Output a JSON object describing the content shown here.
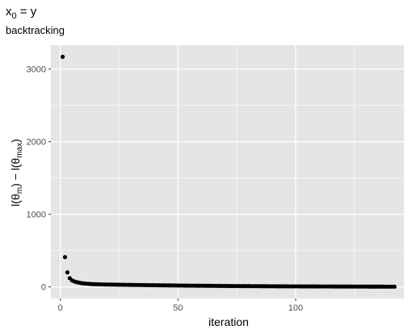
{
  "chart_data": {
    "type": "scatter",
    "title": "x0 = y",
    "title_parts": {
      "base": "x",
      "sub": "0",
      "rest": " = y"
    },
    "subtitle": "backtracking",
    "xlabel": "iteration",
    "ylabel_parts": {
      "p1": "l(θ",
      "s1": "m",
      "p2": ") − l(θ",
      "s2": "max",
      "p3": ")"
    },
    "xlim": [
      -4,
      146
    ],
    "ylim": [
      -160,
      3330
    ],
    "x_ticks": [
      0,
      50,
      100
    ],
    "x_tick_labels": [
      "0",
      "50",
      "100"
    ],
    "y_ticks": [
      0,
      1000,
      2000,
      3000
    ],
    "y_tick_labels": [
      "0",
      "1000",
      "2000",
      "3000"
    ],
    "grid": true,
    "panel_background": "#e5e5e5",
    "grid_color": "#ffffff",
    "point_color": "#000000",
    "x": [
      1,
      2,
      3,
      4,
      5,
      6,
      7,
      8,
      9,
      10,
      11,
      12,
      13,
      14,
      15,
      16,
      17,
      18,
      19,
      20,
      21,
      22,
      23,
      24,
      25,
      26,
      27,
      28,
      29,
      30,
      31,
      32,
      33,
      34,
      35,
      36,
      37,
      38,
      39,
      40,
      41,
      42,
      43,
      44,
      45,
      46,
      47,
      48,
      49,
      50,
      51,
      52,
      53,
      54,
      55,
      56,
      57,
      58,
      59,
      60,
      61,
      62,
      63,
      64,
      65,
      66,
      67,
      68,
      69,
      70,
      71,
      72,
      73,
      74,
      75,
      76,
      77,
      78,
      79,
      80,
      81,
      82,
      83,
      84,
      85,
      86,
      87,
      88,
      89,
      90,
      91,
      92,
      93,
      94,
      95,
      96,
      97,
      98,
      99,
      100,
      101,
      102,
      103,
      104,
      105,
      106,
      107,
      108,
      109,
      110,
      111,
      112,
      113,
      114,
      115,
      116,
      117,
      118,
      119,
      120,
      121,
      122,
      123,
      124,
      125,
      126,
      127,
      128,
      129,
      130,
      131,
      132,
      133,
      134,
      135,
      136,
      137,
      138,
      139,
      140,
      141,
      142
    ],
    "y": [
      3170,
      410,
      200,
      120,
      90,
      75,
      65,
      58,
      52,
      48,
      45,
      42,
      40,
      38,
      37,
      36,
      35,
      34,
      33,
      32.5,
      32,
      31.5,
      31,
      30.5,
      30,
      29.5,
      29,
      28.5,
      28,
      27.5,
      27,
      26.5,
      26,
      25.6,
      25.2,
      24.8,
      24.4,
      24,
      23.6,
      23.2,
      22.8,
      22.4,
      22,
      21.6,
      21.2,
      20.8,
      20.4,
      20,
      19.6,
      19.2,
      18.8,
      18.4,
      18,
      17.7,
      17.4,
      17.1,
      16.8,
      16.5,
      16.2,
      15.9,
      15.6,
      15.3,
      15,
      14.7,
      14.4,
      14.1,
      13.8,
      13.5,
      13.2,
      12.9,
      12.6,
      12.3,
      12,
      11.8,
      11.6,
      11.4,
      11.2,
      11,
      10.8,
      10.6,
      10.4,
      10.2,
      10,
      9.8,
      9.6,
      9.4,
      9.2,
      9,
      8.8,
      8.6,
      8.4,
      8.2,
      8,
      7.9,
      7.8,
      7.7,
      7.6,
      7.5,
      7.4,
      7.3,
      7.2,
      7.1,
      7,
      6.9,
      6.8,
      6.7,
      6.6,
      6.5,
      6.4,
      6.3,
      6.2,
      6.1,
      6,
      5.9,
      5.8,
      5.7,
      5.6,
      5.5,
      5.4,
      5.3,
      5.2,
      5.1,
      5,
      4.9,
      4.8,
      4.7,
      4.6,
      4.5,
      4.4,
      4.3,
      4.2,
      4.1,
      4,
      3.9,
      3.8,
      3.7,
      3.6,
      3.5,
      3.4,
      3.3,
      3.2,
      3.1
    ]
  }
}
